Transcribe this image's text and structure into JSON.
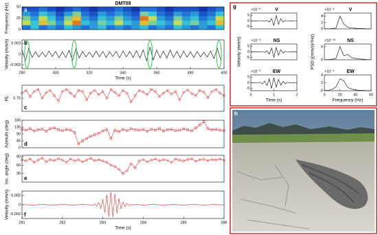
{
  "chart_data": [
    {
      "type": "heatmap",
      "title": "DMT09",
      "panel_label": "a",
      "ylabel": "Frequency (Hz)",
      "xlim": [
        280,
        400
      ],
      "ylim": [
        0,
        50
      ],
      "yticks": [
        0,
        25,
        50
      ],
      "colormap": [
        "#0b1a8c",
        "#1f5fd6",
        "#35c2d8",
        "#e5e23a",
        "#d8301f"
      ],
      "x": [
        282.5,
        287.5,
        292.5,
        297.5,
        302.5,
        307.5,
        312.5,
        317.5,
        322.5,
        327.5,
        332.5,
        337.5,
        342.5,
        347.5,
        352.5,
        357.5,
        362.5,
        367.5,
        372.5,
        377.5,
        382.5,
        387.5,
        392.5,
        397.5
      ],
      "y": [
        5,
        15,
        25,
        35,
        45
      ],
      "z": [
        [
          0.3,
          0.5,
          0.3,
          0.4,
          0.3,
          0.5,
          0.4,
          0.3,
          0.4,
          0.5,
          0.3,
          0.4,
          0.3,
          0.4,
          0.5,
          0.3,
          0.4,
          0.3,
          0.5,
          0.4,
          0.3,
          0.4,
          0.3,
          0.5
        ],
        [
          0.7,
          0.5,
          0.8,
          0.6,
          0.4,
          0.7,
          0.9,
          0.5,
          0.4,
          0.6,
          0.5,
          0.7,
          0.5,
          0.4,
          0.8,
          0.6,
          0.5,
          0.4,
          0.7,
          0.5,
          0.6,
          0.4,
          0.5,
          0.8
        ],
        [
          0.6,
          0.4,
          0.7,
          0.5,
          0.3,
          0.6,
          0.8,
          0.4,
          0.3,
          0.5,
          0.4,
          0.6,
          0.4,
          0.3,
          0.9,
          0.7,
          0.4,
          0.3,
          0.6,
          0.4,
          0.5,
          0.3,
          0.4,
          0.7
        ],
        [
          0.4,
          0.3,
          0.5,
          0.4,
          0.2,
          0.4,
          0.6,
          0.3,
          0.2,
          0.4,
          0.3,
          0.4,
          0.3,
          0.2,
          0.6,
          0.5,
          0.3,
          0.2,
          0.4,
          0.3,
          0.4,
          0.2,
          0.3,
          0.5
        ],
        [
          0.2,
          0.2,
          0.3,
          0.2,
          0.1,
          0.2,
          0.3,
          0.2,
          0.1,
          0.2,
          0.2,
          0.3,
          0.2,
          0.1,
          0.3,
          0.3,
          0.2,
          0.1,
          0.2,
          0.2,
          0.2,
          0.1,
          0.2,
          0.3
        ]
      ]
    },
    {
      "type": "line",
      "panel_label": "b",
      "ylabel": "Velocity (mm/s)",
      "xlabel": "Time (s)",
      "color": "#000000",
      "xlim": [
        280,
        400
      ],
      "xticks": [
        280,
        300,
        320,
        340,
        360,
        380,
        400
      ],
      "ylim": [
        -0.004,
        0.004
      ],
      "yticks": [
        -0.003,
        0,
        0.003
      ],
      "highlights": [
        283,
        311,
        356,
        397
      ],
      "highlight_color": "#2ecc40",
      "x": [
        280,
        282,
        284,
        286,
        288,
        290,
        292,
        294,
        296,
        298,
        300,
        302,
        304,
        306,
        308,
        310,
        312,
        314,
        316,
        318,
        320,
        322,
        324,
        326,
        328,
        330,
        332,
        334,
        336,
        338,
        340,
        342,
        344,
        346,
        348,
        350,
        352,
        354,
        356,
        358,
        360,
        362,
        364,
        366,
        368,
        370,
        372,
        374,
        376,
        378,
        380,
        382,
        384,
        386,
        388,
        390,
        392,
        394,
        396,
        398
      ],
      "values": [
        0.0012,
        -0.0018,
        0.0016,
        -0.0009,
        0.0007,
        -0.0008,
        0.0006,
        -0.0007,
        0.0009,
        -0.0006,
        0.0008,
        -0.001,
        0.0007,
        -0.0009,
        0.0011,
        -0.0017,
        0.0015,
        -0.001,
        0.0008,
        -0.0007,
        0.0006,
        -0.0008,
        0.0009,
        -0.0007,
        0.0008,
        -0.0009,
        0.0007,
        -0.0006,
        0.0008,
        -0.001,
        0.0009,
        -0.0007,
        0.0008,
        -0.0009,
        0.001,
        -0.0011,
        0.0012,
        -0.0018,
        0.002,
        -0.0016,
        0.0012,
        -0.001,
        0.0009,
        -0.0011,
        0.0012,
        -0.0009,
        0.0008,
        -0.001,
        0.0009,
        -0.0008,
        0.0007,
        -0.0009,
        0.0008,
        -0.0007,
        0.0006,
        -0.0008,
        0.0009,
        -0.0012,
        0.0017,
        -0.0015
      ]
    },
    {
      "type": "line",
      "panel_label": "c",
      "ylabel": "RL",
      "color": "#e03030",
      "marker": "circle",
      "xlim": [
        281,
        286
      ],
      "ylim": [
        0.5,
        1
      ],
      "yticks": [
        {
          "value": 0.75,
          "label": "0.75"
        }
      ],
      "x": [
        281,
        281.1,
        281.2,
        281.3,
        281.4,
        281.5,
        281.6,
        281.7,
        281.8,
        281.9,
        282,
        282.1,
        282.2,
        282.3,
        282.4,
        282.5,
        282.6,
        282.7,
        282.8,
        282.9,
        283,
        283.1,
        283.2,
        283.3,
        283.4,
        283.5,
        283.6,
        283.7,
        283.8,
        283.9,
        284,
        284.1,
        284.2,
        284.3,
        284.4,
        284.5,
        284.6,
        284.7,
        284.8,
        284.9,
        285,
        285.1,
        285.2,
        285.3,
        285.4,
        285.5,
        285.6,
        285.7,
        285.8,
        285.9,
        286
      ],
      "values": [
        0.85,
        0.9,
        0.78,
        0.88,
        0.92,
        0.75,
        0.86,
        0.9,
        0.8,
        0.7,
        0.88,
        0.92,
        0.85,
        0.78,
        0.9,
        0.88,
        0.72,
        0.85,
        0.9,
        0.82,
        0.88,
        0.75,
        0.92,
        0.86,
        0.8,
        0.9,
        0.85,
        0.68,
        0.8,
        0.9,
        0.87,
        0.82,
        0.92,
        0.88,
        0.78,
        0.85,
        0.9,
        0.83,
        0.88,
        0.72,
        0.86,
        0.91,
        0.84,
        0.8,
        0.9,
        0.87,
        0.76,
        0.88,
        0.92,
        0.85,
        0.8
      ]
    },
    {
      "type": "line",
      "panel_label": "d",
      "ylabel": "Azimuth (deg)",
      "color": "#e03030",
      "marker": "square",
      "xlim": [
        281,
        286
      ],
      "ylim": [
        0,
        180
      ],
      "yticks": [
        0,
        45,
        90,
        135,
        180
      ],
      "x": [
        281,
        281.1,
        281.2,
        281.3,
        281.4,
        281.5,
        281.6,
        281.7,
        281.8,
        281.9,
        282,
        282.1,
        282.2,
        282.3,
        282.4,
        282.5,
        282.6,
        282.7,
        282.8,
        282.9,
        283,
        283.1,
        283.2,
        283.3,
        283.4,
        283.5,
        283.6,
        283.7,
        283.8,
        283.9,
        284,
        284.1,
        284.2,
        284.3,
        284.4,
        284.5,
        284.6,
        284.7,
        284.8,
        284.9,
        285,
        285.1,
        285.2,
        285.3,
        285.4,
        285.5,
        285.6,
        285.7,
        285.8,
        285.9,
        286
      ],
      "values": [
        120,
        115,
        125,
        110,
        118,
        122,
        108,
        125,
        130,
        118,
        112,
        120,
        115,
        100,
        25,
        45,
        60,
        75,
        85,
        95,
        110,
        120,
        60,
        115,
        105,
        120,
        112,
        125,
        118,
        115,
        120,
        108,
        122,
        116,
        125,
        110,
        118,
        120,
        112,
        115,
        124,
        118,
        110,
        130,
        150,
        170,
        125,
        118,
        120,
        115,
        112
      ]
    },
    {
      "type": "line",
      "panel_label": "e",
      "ylabel": "Inc. angle (deg)",
      "color": "#e03030",
      "marker": "circle",
      "xlim": [
        281,
        286
      ],
      "ylim": [
        0,
        95
      ],
      "yticks": [
        30,
        60,
        90
      ],
      "x": [
        281,
        281.1,
        281.2,
        281.3,
        281.4,
        281.5,
        281.6,
        281.7,
        281.8,
        281.9,
        282,
        282.1,
        282.2,
        282.3,
        282.4,
        282.5,
        282.6,
        282.7,
        282.8,
        282.9,
        283,
        283.1,
        283.2,
        283.3,
        283.4,
        283.5,
        283.6,
        283.7,
        283.8,
        283.9,
        284,
        284.1,
        284.2,
        284.3,
        284.4,
        284.5,
        284.6,
        284.7,
        284.8,
        284.9,
        285,
        285.1,
        285.2,
        285.3,
        285.4,
        285.5,
        285.6,
        285.7,
        285.8,
        285.9,
        286
      ],
      "values": [
        80,
        75,
        82,
        70,
        78,
        85,
        72,
        80,
        76,
        83,
        78,
        70,
        82,
        75,
        80,
        72,
        78,
        84,
        76,
        80,
        75,
        70,
        60,
        55,
        45,
        30,
        40,
        65,
        50,
        75,
        80,
        72,
        78,
        82,
        75,
        80,
        77,
        70,
        82,
        78,
        75,
        80,
        83,
        74,
        79,
        81,
        76,
        80,
        78,
        82,
        77
      ]
    },
    {
      "type": "line",
      "panel_label": "f",
      "ylabel": "Velocity (mm/s)",
      "xlabel": "Time (s)",
      "color": "#e03030",
      "xlim": [
        281,
        286
      ],
      "xticks": [
        281,
        282,
        283,
        284,
        285,
        286
      ],
      "ylim": [
        -0.003,
        0.003
      ],
      "yticks": [
        -0.002,
        0,
        0.002
      ],
      "x": [
        281,
        281.25,
        281.5,
        281.75,
        282,
        282.25,
        282.5,
        282.75,
        282.8,
        282.85,
        282.9,
        282.95,
        283,
        283.05,
        283.1,
        283.15,
        283.2,
        283.25,
        283.3,
        283.35,
        283.4,
        283.45,
        283.5,
        283.55,
        283.6,
        283.65,
        283.7,
        283.75,
        283.8,
        284,
        284.25,
        284.5,
        284.75,
        285,
        285.25,
        285.5,
        285.75,
        286
      ],
      "values": [
        0.0001,
        -0.0001,
        0.0001,
        -0.0001,
        0.0001,
        -0.0001,
        0.0001,
        -0.0001,
        0.0002,
        -0.0003,
        0.0005,
        -0.0008,
        0.0012,
        -0.0017,
        0.0022,
        -0.0026,
        0.0028,
        -0.0027,
        0.0024,
        -0.0019,
        0.0014,
        -0.0009,
        0.0006,
        -0.0004,
        0.0003,
        -0.0002,
        0.0001,
        -0.0001,
        0.0001,
        -0.0001,
        0.0001,
        -0.0001,
        0.0001,
        -0.0001,
        0.0001,
        -0.0001,
        0.0001,
        -0.0001
      ]
    },
    {
      "type": "line",
      "panel_label": "g",
      "title": "V",
      "y_multiplier": "×10⁻³",
      "color": "#000000",
      "xlim": [
        0,
        2
      ],
      "ylim": [
        -7,
        7
      ],
      "yticks": [
        -5,
        0,
        5
      ],
      "x": [
        0,
        0.1,
        0.2,
        0.3,
        0.4,
        0.5,
        0.6,
        0.7,
        0.8,
        0.9,
        1,
        1.1,
        1.2,
        1.3,
        1.4,
        1.5,
        1.6,
        1.7,
        1.8,
        1.9,
        2
      ],
      "values": [
        0,
        0,
        0.1,
        -0.1,
        0,
        0.2,
        -0.3,
        0.5,
        -1,
        2,
        -4,
        5,
        -3,
        2,
        -1,
        0.5,
        -0.3,
        0.2,
        -0.1,
        0,
        0
      ]
    },
    {
      "type": "line",
      "title": "V",
      "y_multiplier": "×10⁻⁹",
      "color": "#000000",
      "xlim": [
        0,
        60
      ],
      "ylim": [
        0,
        5
      ],
      "yticks": [
        0,
        2,
        4
      ],
      "x": [
        0,
        5,
        10,
        15,
        20,
        25,
        30,
        35,
        40,
        45,
        50,
        55,
        60
      ],
      "values": [
        0,
        0,
        0.1,
        0.3,
        4,
        1.5,
        0.5,
        0.3,
        0.2,
        0.1,
        0.1,
        0,
        0
      ]
    },
    {
      "type": "line",
      "title": "NS",
      "y_multiplier": "×10⁻³",
      "ylabel": "Velocity (mm/s)",
      "color": "#000000",
      "xlim": [
        0,
        2
      ],
      "ylim": [
        -7,
        7
      ],
      "yticks": [
        -5,
        0,
        5
      ],
      "x": [
        0,
        0.1,
        0.2,
        0.3,
        0.4,
        0.5,
        0.6,
        0.7,
        0.8,
        0.9,
        1,
        1.1,
        1.2,
        1.3,
        1.4,
        1.5,
        1.6,
        1.7,
        1.8,
        1.9,
        2
      ],
      "values": [
        0,
        0.1,
        -0.1,
        0.2,
        -0.2,
        0.3,
        -0.5,
        1,
        -2,
        3.5,
        -5,
        4,
        -3,
        2,
        -1,
        0.5,
        -0.3,
        0.2,
        -0.1,
        0.1,
        0
      ]
    },
    {
      "type": "line",
      "title": "NS",
      "y_multiplier": "×10⁻¹⁰",
      "ylabel": "PSD ((mm/s)²/Hz)",
      "color": "#000000",
      "xlim": [
        0,
        60
      ],
      "ylim": [
        0,
        6
      ],
      "yticks": [
        0,
        5
      ],
      "x": [
        0,
        5,
        10,
        15,
        20,
        25,
        30,
        35,
        40,
        45,
        50,
        55,
        60
      ],
      "values": [
        0,
        0.1,
        0.2,
        0.5,
        5,
        1.5,
        2,
        0.8,
        0.5,
        0.3,
        0.2,
        0.1,
        0
      ]
    },
    {
      "type": "line",
      "title": "EW",
      "y_multiplier": "×10⁻³",
      "xlabel": "Time (s)",
      "color": "#000000",
      "xlim": [
        0,
        2
      ],
      "xticks": [
        0,
        1,
        2
      ],
      "ylim": [
        -7,
        7
      ],
      "yticks": [
        -5,
        0,
        5
      ],
      "x": [
        0,
        0.1,
        0.2,
        0.3,
        0.4,
        0.5,
        0.6,
        0.7,
        0.8,
        0.9,
        1,
        1.1,
        1.2,
        1.3,
        1.4,
        1.5,
        1.6,
        1.7,
        1.8,
        1.9,
        2
      ],
      "values": [
        0,
        -0.1,
        0.2,
        -0.3,
        0.5,
        -1,
        1.5,
        -2.5,
        3.5,
        -5,
        4.5,
        -4,
        3,
        -2,
        1.2,
        -0.8,
        0.5,
        -0.3,
        0.2,
        -0.1,
        0
      ]
    },
    {
      "type": "line",
      "title": "EW",
      "y_multiplier": "×10⁻⁹",
      "xlabel": "Frequency (Hz)",
      "color": "#000000",
      "xlim": [
        0,
        60
      ],
      "xticks": [
        0,
        20,
        40,
        60
      ],
      "ylim": [
        0,
        4
      ],
      "yticks": [
        0,
        2,
        4
      ],
      "x": [
        0,
        5,
        10,
        15,
        20,
        25,
        30,
        35,
        40,
        45,
        50,
        55,
        60
      ],
      "values": [
        0,
        0.1,
        0.3,
        1,
        3,
        2.5,
        0.8,
        0.4,
        0.2,
        0.1,
        0.1,
        0,
        0
      ]
    }
  ],
  "photo": {
    "panel_label": "h"
  }
}
